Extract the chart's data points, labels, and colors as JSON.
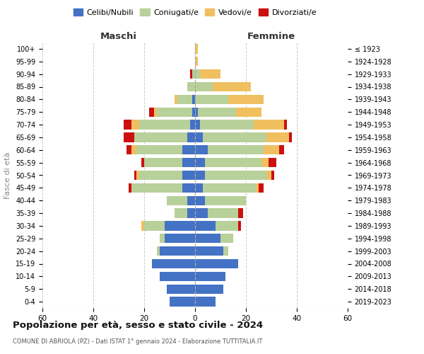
{
  "age_groups": [
    "0-4",
    "5-9",
    "10-14",
    "15-19",
    "20-24",
    "25-29",
    "30-34",
    "35-39",
    "40-44",
    "45-49",
    "50-54",
    "55-59",
    "60-64",
    "65-69",
    "70-74",
    "75-79",
    "80-84",
    "85-89",
    "90-94",
    "95-99",
    "100+"
  ],
  "birth_years": [
    "2019-2023",
    "2014-2018",
    "2009-2013",
    "2004-2008",
    "1999-2003",
    "1994-1998",
    "1989-1993",
    "1984-1988",
    "1979-1983",
    "1974-1978",
    "1969-1973",
    "1964-1968",
    "1959-1963",
    "1954-1958",
    "1949-1953",
    "1944-1948",
    "1939-1943",
    "1934-1938",
    "1929-1933",
    "1924-1928",
    "≤ 1923"
  ],
  "colors": {
    "celibe": "#4472c4",
    "coniugato": "#b8d09a",
    "vedovo": "#f0c060",
    "divorziato": "#cc1010"
  },
  "maschi": {
    "celibe": [
      10,
      11,
      14,
      17,
      14,
      12,
      12,
      3,
      3,
      5,
      5,
      5,
      5,
      3,
      2,
      1,
      1,
      0,
      0,
      0,
      0
    ],
    "coniugato": [
      0,
      0,
      0,
      0,
      1,
      2,
      8,
      5,
      8,
      20,
      17,
      15,
      18,
      21,
      20,
      14,
      6,
      3,
      1,
      0,
      0
    ],
    "vedovo": [
      0,
      0,
      0,
      0,
      0,
      0,
      1,
      0,
      0,
      0,
      1,
      0,
      2,
      0,
      3,
      1,
      1,
      0,
      0,
      0,
      0
    ],
    "divorziato": [
      0,
      0,
      0,
      0,
      0,
      0,
      0,
      0,
      0,
      1,
      1,
      1,
      2,
      4,
      3,
      2,
      0,
      0,
      1,
      0,
      0
    ]
  },
  "femmine": {
    "celibe": [
      8,
      11,
      12,
      17,
      11,
      10,
      8,
      5,
      4,
      3,
      4,
      4,
      5,
      3,
      2,
      1,
      0,
      0,
      0,
      0,
      0
    ],
    "coniugato": [
      0,
      0,
      0,
      0,
      2,
      5,
      9,
      12,
      16,
      21,
      24,
      22,
      22,
      25,
      21,
      15,
      13,
      7,
      2,
      0,
      0
    ],
    "vedovo": [
      0,
      0,
      0,
      0,
      0,
      0,
      0,
      0,
      0,
      1,
      2,
      3,
      6,
      9,
      12,
      10,
      14,
      15,
      8,
      1,
      1
    ],
    "divorziato": [
      0,
      0,
      0,
      0,
      0,
      0,
      1,
      2,
      0,
      2,
      1,
      3,
      2,
      1,
      1,
      0,
      0,
      0,
      0,
      0,
      0
    ]
  },
  "title": "Popolazione per età, sesso e stato civile - 2024",
  "subtitle": "COMUNE DI ABRIOLA (PZ) - Dati ISTAT 1° gennaio 2024 - Elaborazione TUTTITALIA.IT",
  "xlabel_maschi": "Maschi",
  "xlabel_femmine": "Femmine",
  "ylabel": "Fasce di età",
  "xlim": 60,
  "legend_labels": [
    "Celibi/Nubili",
    "Coniugati/e",
    "Vedovi/e",
    "Divorziati/e"
  ],
  "background_color": "#ffffff"
}
